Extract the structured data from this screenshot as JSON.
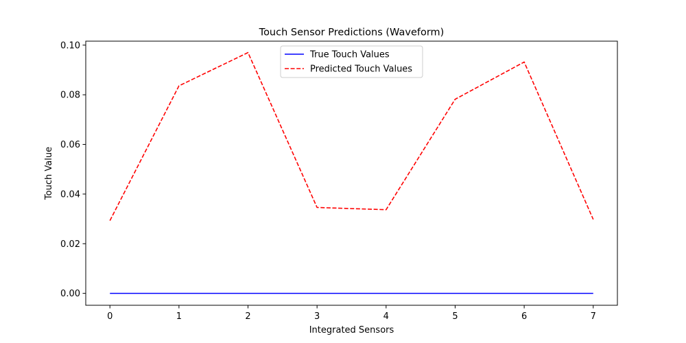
{
  "chart_data": {
    "type": "line",
    "title": "Touch Sensor Predictions (Waveform)",
    "xlabel": "Integrated Sensors",
    "ylabel": "Touch Value",
    "x": [
      0,
      1,
      2,
      3,
      4,
      5,
      6,
      7
    ],
    "xlim": [
      -0.35,
      7.35
    ],
    "ylim": [
      -0.0048,
      0.1016
    ],
    "x_ticks": [
      0,
      1,
      2,
      3,
      4,
      5,
      6,
      7
    ],
    "x_tick_labels": [
      "0",
      "1",
      "2",
      "3",
      "4",
      "5",
      "6",
      "7"
    ],
    "y_ticks": [
      0.0,
      0.02,
      0.04,
      0.06,
      0.08,
      0.1
    ],
    "y_tick_labels": [
      "0.00",
      "0.02",
      "0.04",
      "0.06",
      "0.08",
      "0.10"
    ],
    "grid": false,
    "legend_position": "upper-center",
    "series": [
      {
        "name": "True Touch Values",
        "values": [
          0,
          0,
          0,
          0,
          0,
          0,
          0,
          0
        ],
        "color": "#0000ff",
        "style": "solid"
      },
      {
        "name": "Predicted Touch Values",
        "values": [
          0.0293,
          0.0836,
          0.097,
          0.0346,
          0.0337,
          0.0782,
          0.0932,
          0.0298
        ],
        "color": "#ff0000",
        "style": "dashed"
      }
    ]
  }
}
